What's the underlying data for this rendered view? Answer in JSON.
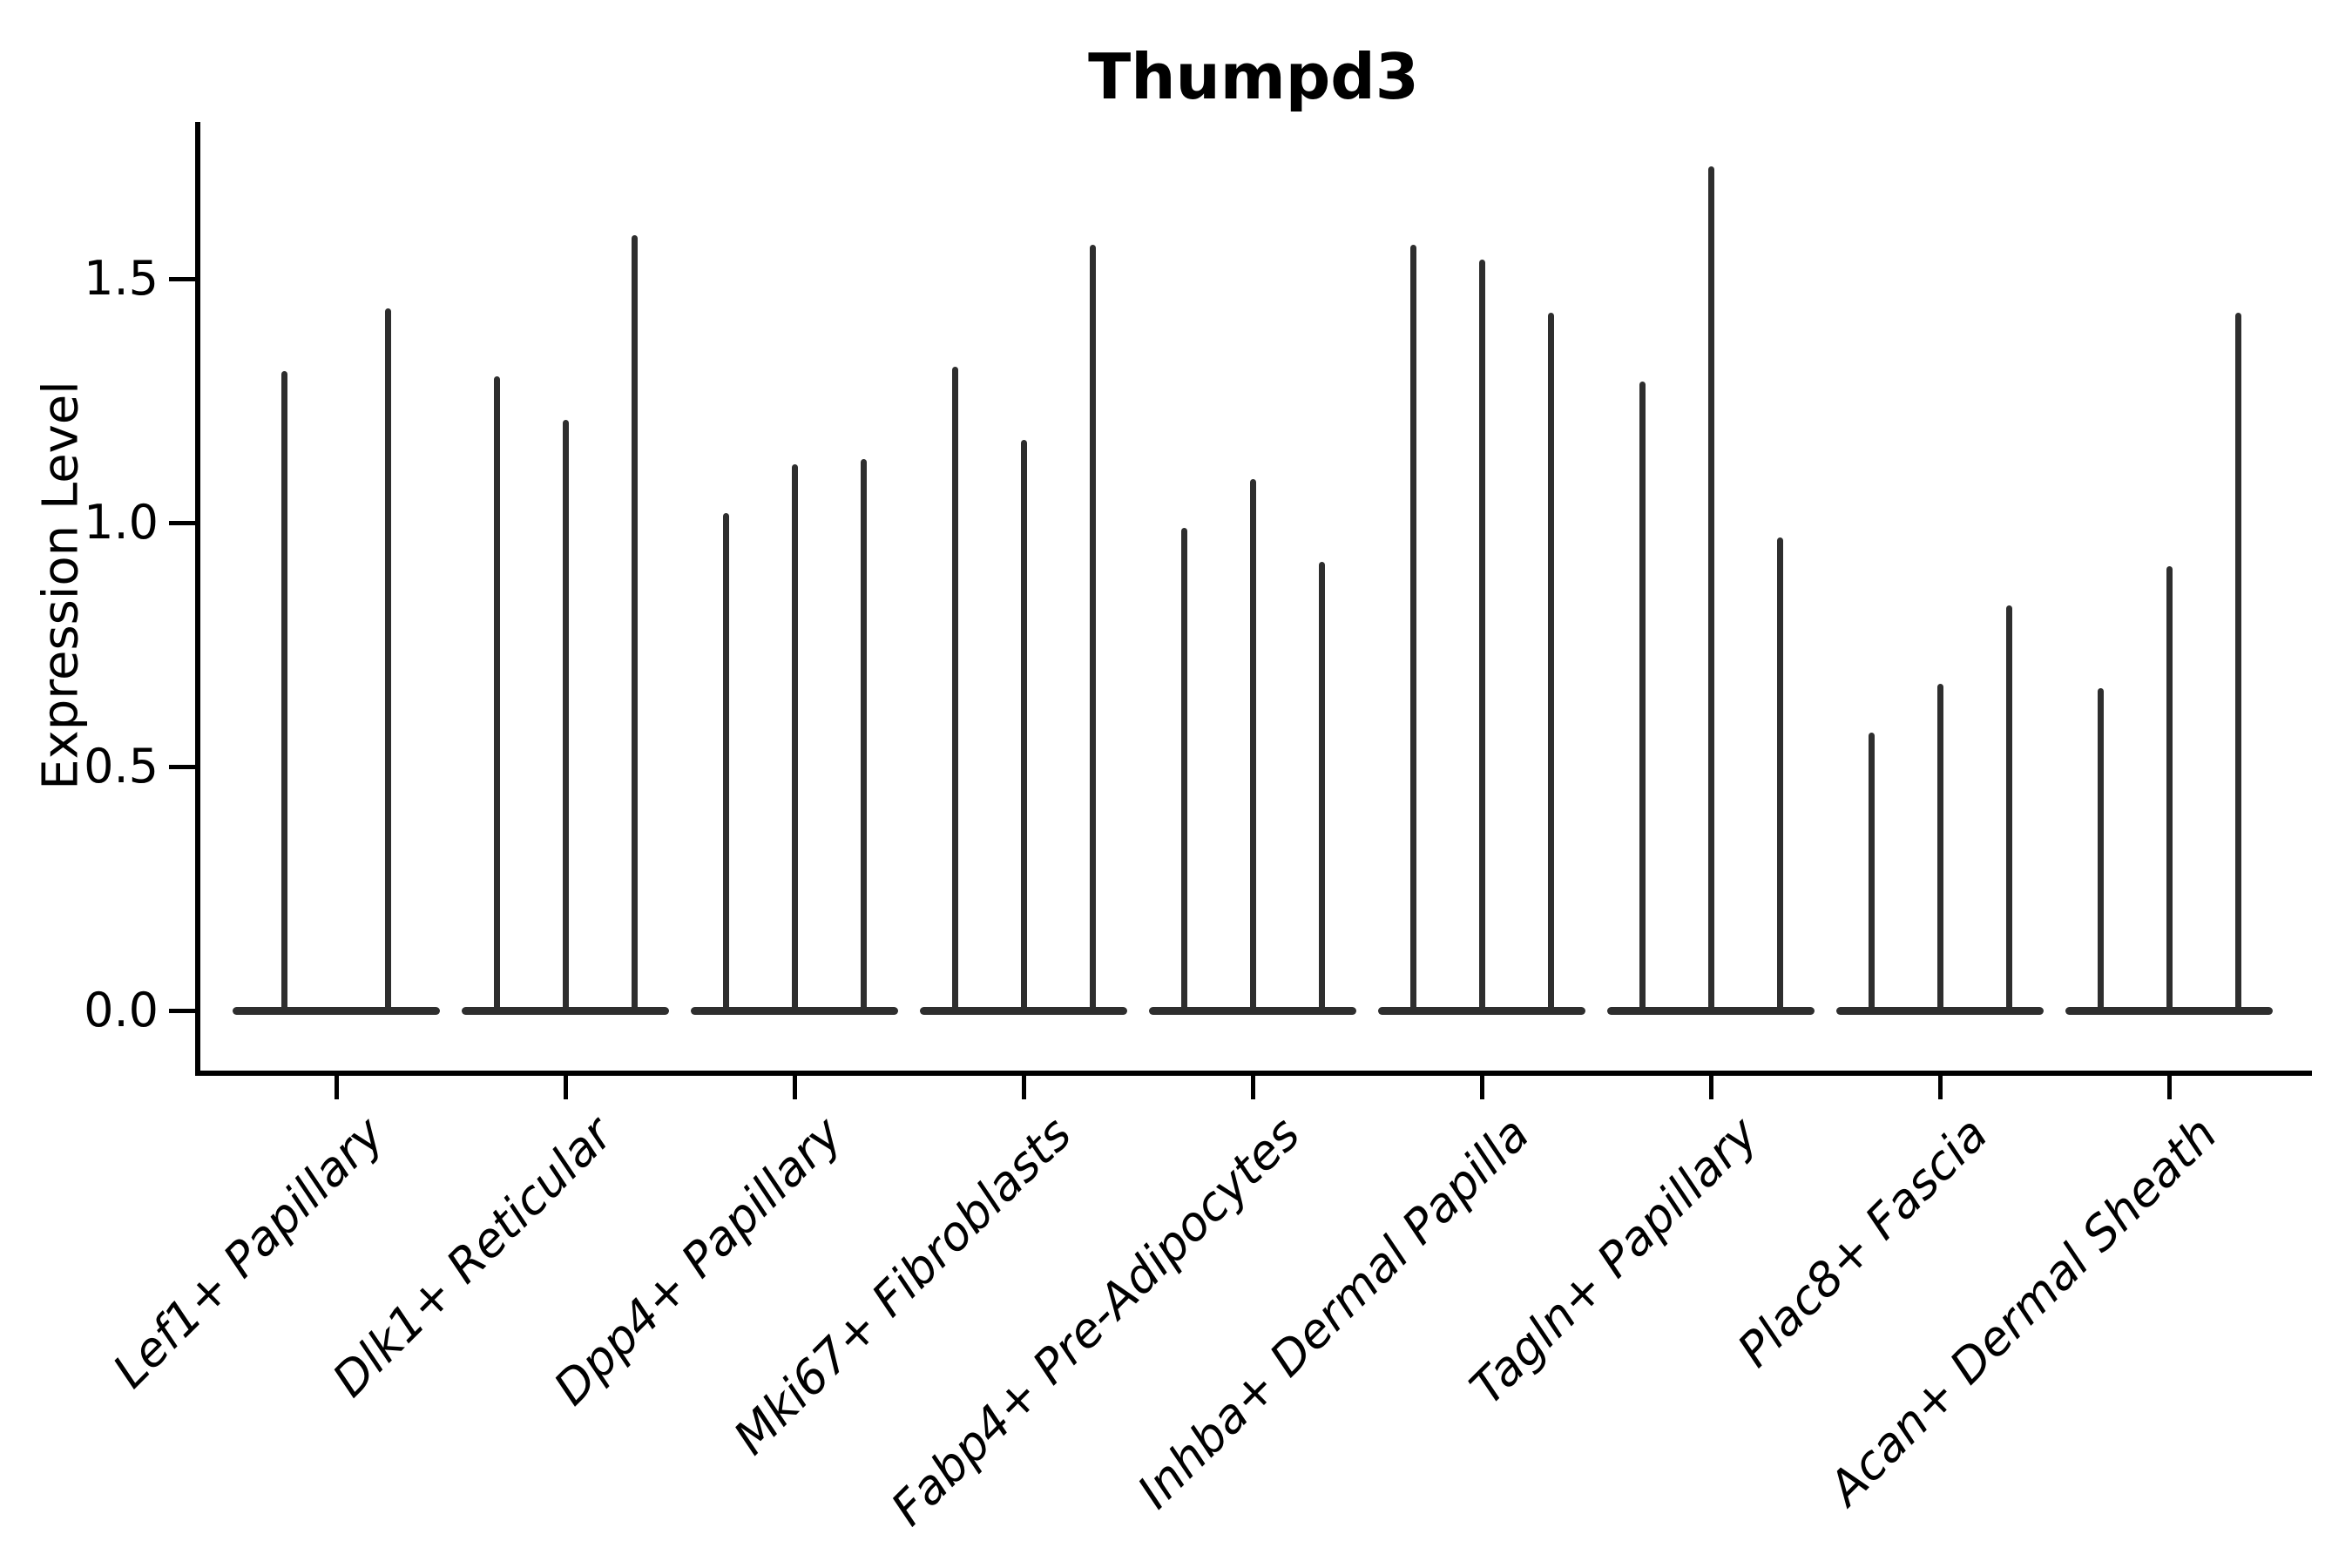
{
  "title": "Thumpd3",
  "ylabel": "Expression Level",
  "chart_data": {
    "type": "violin",
    "title": "Thumpd3",
    "xlabel": "",
    "ylabel": "Expression Level",
    "categories": [
      "Lef1+ Papillary",
      "Dlk1+ Reticular",
      "Dpp4+ Papillary",
      "Mki67+ Fibroblasts",
      "Fabp4+ Pre-Adipocytes",
      "Inhba+ Dermal Papilla",
      "Tagln+ Papillary",
      "Plac8+ Fascia",
      "Acan+ Dermal Sheath"
    ],
    "series": [
      {
        "category": "Lef1+ Papillary",
        "violin_peaks": [
          1.31,
          1.44
        ]
      },
      {
        "category": "Dlk1+ Reticular",
        "violin_peaks": [
          1.3,
          1.21,
          1.59
        ]
      },
      {
        "category": "Dpp4+ Papillary",
        "violin_peaks": [
          1.02,
          1.12,
          1.13
        ]
      },
      {
        "category": "Mki67+ Fibroblasts",
        "violin_peaks": [
          1.32,
          1.17,
          1.57
        ]
      },
      {
        "category": "Fabp4+ Pre-Adipocytes",
        "violin_peaks": [
          0.99,
          1.09,
          0.92
        ]
      },
      {
        "category": "Inhba+ Dermal Papilla",
        "violin_peaks": [
          1.57,
          1.54,
          1.43
        ]
      },
      {
        "category": "Tagln+ Papillary",
        "violin_peaks": [
          1.29,
          1.73,
          0.97
        ]
      },
      {
        "category": "Plac8+ Fascia",
        "violin_peaks": [
          0.57,
          0.67,
          0.83
        ]
      },
      {
        "category": "Acan+ Dermal Sheath",
        "violin_peaks": [
          0.66,
          0.91,
          1.43
        ]
      }
    ],
    "yticks": [
      "0.0",
      "0.5",
      "1.0",
      "1.5"
    ],
    "ylim": [
      -0.13,
      1.82
    ],
    "grid": false,
    "legend": "none",
    "violin_color": "#2e2e2e",
    "axis_color": "#000000",
    "background": "#ffffff"
  }
}
